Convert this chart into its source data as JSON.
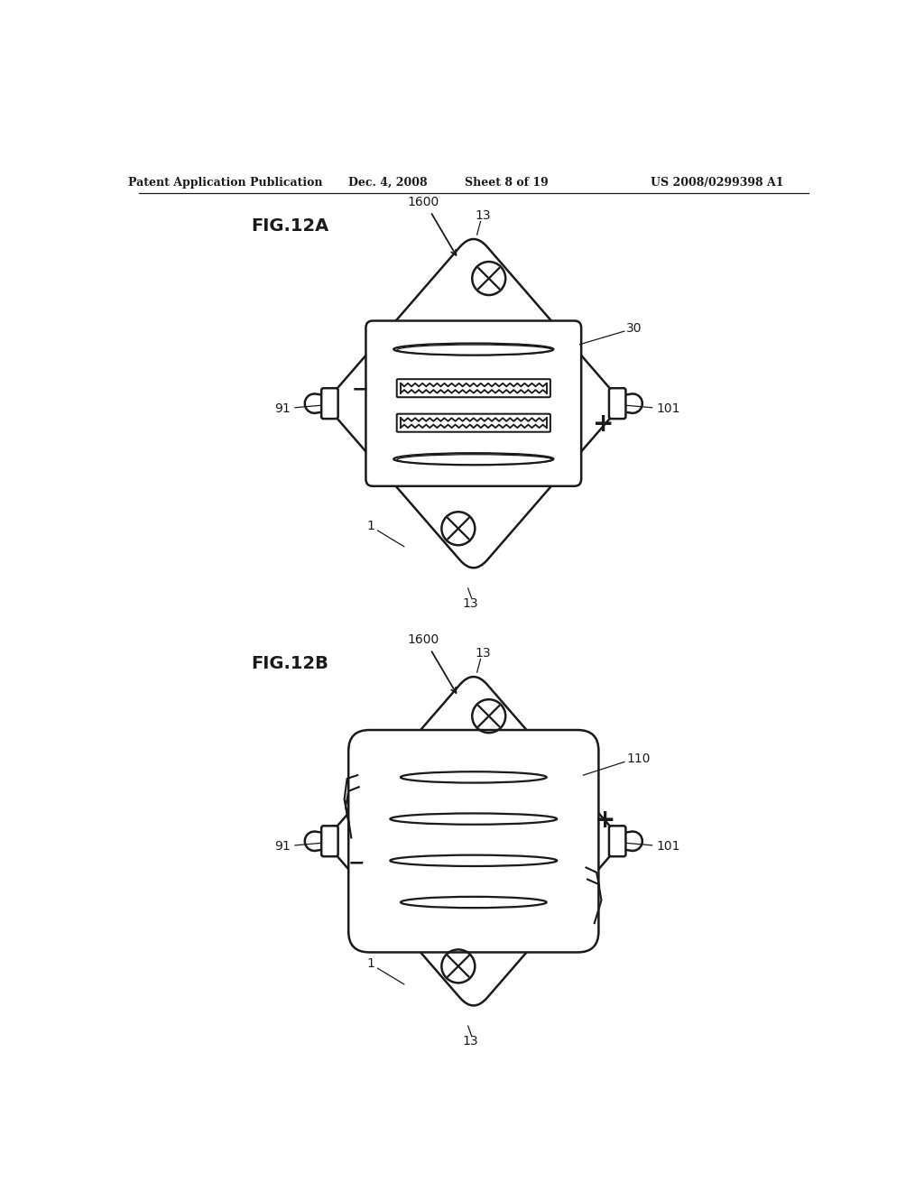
{
  "bg_color": "#ffffff",
  "line_color": "#1a1a1a",
  "header_text": "Patent Application Publication",
  "header_date": "Dec. 4, 2008",
  "header_sheet": "Sheet 8 of 19",
  "header_patent": "US 2008/0299398 A1",
  "fig_a_label": "FIG.12A",
  "fig_b_label": "FIG.12B",
  "label_1600": "1600",
  "label_13": "13",
  "label_30": "30",
  "label_91": "91",
  "label_101": "101",
  "label_1": "1",
  "label_110": "110"
}
